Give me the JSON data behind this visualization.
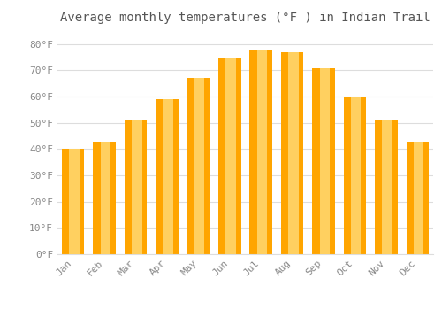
{
  "title": "Average monthly temperatures (°F ) in Indian Trail",
  "months": [
    "Jan",
    "Feb",
    "Mar",
    "Apr",
    "May",
    "Jun",
    "Jul",
    "Aug",
    "Sep",
    "Oct",
    "Nov",
    "Dec"
  ],
  "values": [
    40,
    43,
    51,
    59,
    67,
    75,
    78,
    77,
    71,
    60,
    51,
    43
  ],
  "bar_color_main": "#FFA500",
  "bar_color_light": "#FFD060",
  "background_color": "#FFFFFF",
  "grid_color": "#DDDDDD",
  "text_color": "#888888",
  "title_color": "#555555",
  "ylim": [
    0,
    85
  ],
  "yticks": [
    0,
    10,
    20,
    30,
    40,
    50,
    60,
    70,
    80
  ],
  "title_fontsize": 10,
  "tick_fontsize": 8
}
